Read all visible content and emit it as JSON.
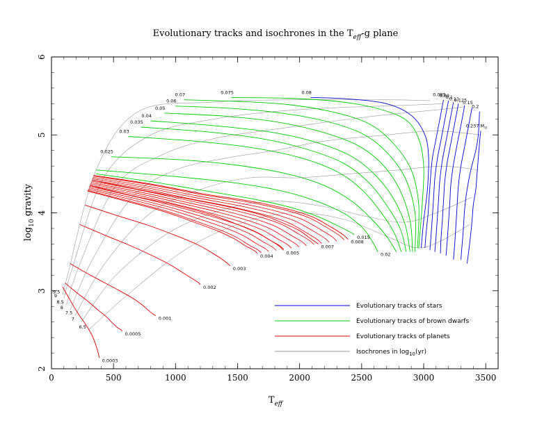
{
  "chart_data": {
    "type": "line",
    "title": "Evolutionary tracks and isochrones in the T",
    "title_sub": "eff",
    "title_tail": "-g plane",
    "xlabel": "T",
    "xlabel_sub": "eff",
    "ylabel": "log",
    "ylabel_sub": "10",
    "ylabel_tail": " gravity",
    "xlim": [
      0,
      3600
    ],
    "ylim": [
      2,
      6
    ],
    "xticks": [
      "0",
      "500",
      "1000",
      "1500",
      "2000",
      "2500",
      "3000",
      "3500"
    ],
    "yticks": [
      "2",
      "3",
      "4",
      "5",
      "6"
    ],
    "colors": {
      "stars": "#0000cc",
      "brown_dwarfs": "#00cc00",
      "planets": "#dd0000",
      "isochrones": "#999999"
    },
    "legend": [
      {
        "label": "Evolutionary tracks of stars",
        "color": "#0000cc"
      },
      {
        "label": "Evolutionary tracks of brown dwarfs",
        "color": "#00cc00"
      },
      {
        "label": "Evolutionary tracks of planets",
        "color": "#dd0000"
      },
      {
        "label": "Isochrones in log",
        "sub": "10",
        "tail": "(yr)",
        "color": "#999999"
      }
    ],
    "stars": [
      {
        "label": "0.237 M",
        "sub": "⊙",
        "x": [
          3460,
          3450,
          3440,
          3430,
          3420,
          3400,
          3390,
          3370,
          3350
        ],
        "y": [
          5.05,
          4.9,
          4.7,
          4.5,
          4.3,
          4.1,
          3.9,
          3.6,
          3.35
        ]
      },
      {
        "label": "0.2",
        "x": [
          3450,
          3440,
          3420,
          3380,
          3350,
          3330,
          3320,
          3310,
          3300
        ],
        "y": [
          5.3,
          5.0,
          4.8,
          4.55,
          4.3,
          4.05,
          3.8,
          3.6,
          3.4
        ]
      },
      {
        "label": "0.15",
        "x": [
          3390,
          3360,
          3330,
          3300,
          3280,
          3270,
          3260,
          3250,
          3240
        ],
        "y": [
          5.35,
          5.1,
          4.85,
          4.6,
          4.35,
          4.1,
          3.85,
          3.6,
          3.4
        ]
      },
      {
        "label": "0.125",
        "x": [
          3330,
          3300,
          3270,
          3240,
          3220,
          3210,
          3200,
          3190,
          3180
        ],
        "y": [
          5.38,
          5.12,
          4.88,
          4.62,
          4.38,
          4.12,
          3.88,
          3.65,
          3.45
        ]
      },
      {
        "label": "0.11",
        "x": [
          3280,
          3250,
          3220,
          3190,
          3170,
          3160,
          3150,
          3140,
          3135
        ],
        "y": [
          5.4,
          5.15,
          4.9,
          4.65,
          4.4,
          4.15,
          3.9,
          3.68,
          3.48
        ]
      },
      {
        "label": "0.1",
        "x": [
          3240,
          3210,
          3180,
          3150,
          3130,
          3120,
          3110,
          3100,
          3090
        ],
        "y": [
          5.42,
          5.17,
          4.92,
          4.67,
          4.42,
          4.17,
          3.93,
          3.7,
          3.5
        ]
      },
      {
        "label": "0.09",
        "x": [
          3200,
          3170,
          3140,
          3110,
          3090,
          3080,
          3070,
          3060,
          3050
        ],
        "y": [
          5.44,
          5.19,
          4.94,
          4.69,
          4.44,
          4.2,
          3.95,
          3.72,
          3.52
        ]
      },
      {
        "label": "0.085",
        "x": [
          3160,
          3130,
          3100,
          3070,
          3055,
          3045,
          3035,
          3020,
          3010
        ],
        "y": [
          5.45,
          5.2,
          4.95,
          4.7,
          4.45,
          4.22,
          3.98,
          3.75,
          3.55
        ]
      },
      {
        "label": "0.08",
        "x": [
          2090,
          2400,
          2700,
          2900,
          3010,
          3040,
          3030,
          3000,
          2980
        ],
        "y": [
          5.48,
          5.46,
          5.4,
          5.25,
          5.0,
          4.7,
          4.3,
          3.9,
          3.55
        ]
      }
    ],
    "brown_dwarfs": [
      {
        "label": "0.075",
        "x": [
          1450,
          1900,
          2300,
          2600,
          2850,
          2960,
          3000,
          2990,
          2960
        ],
        "y": [
          5.48,
          5.47,
          5.43,
          5.35,
          5.2,
          4.95,
          4.6,
          4.15,
          3.55
        ]
      },
      {
        "label": "0.07",
        "x": [
          1070,
          1500,
          1900,
          2250,
          2550,
          2750,
          2900,
          2960,
          2950
        ],
        "y": [
          5.45,
          5.43,
          5.39,
          5.3,
          5.15,
          4.9,
          4.55,
          4.1,
          3.55
        ]
      },
      {
        "label": "0.06",
        "x": [
          1000,
          1450,
          1850,
          2200,
          2500,
          2700,
          2850,
          2930,
          2930
        ],
        "y": [
          5.37,
          5.34,
          5.28,
          5.18,
          5.02,
          4.78,
          4.45,
          4.0,
          3.5
        ]
      },
      {
        "label": "0.05",
        "x": [
          910,
          1400,
          1800,
          2150,
          2450,
          2650,
          2800,
          2890,
          2910
        ],
        "y": [
          5.28,
          5.24,
          5.17,
          5.05,
          4.88,
          4.65,
          4.32,
          3.9,
          3.5
        ]
      },
      {
        "label": "0.04",
        "x": [
          800,
          1300,
          1750,
          2100,
          2400,
          2600,
          2750,
          2850,
          2890
        ],
        "y": [
          5.18,
          5.12,
          5.04,
          4.92,
          4.74,
          4.5,
          4.2,
          3.85,
          3.5
        ]
      },
      {
        "label": "0.035",
        "x": [
          720,
          1250,
          1700,
          2050,
          2350,
          2550,
          2700,
          2810,
          2860
        ],
        "y": [
          5.1,
          5.04,
          4.95,
          4.82,
          4.64,
          4.4,
          4.1,
          3.8,
          3.5
        ]
      },
      {
        "label": "0.03",
        "x": [
          620,
          1150,
          1600,
          2000,
          2300,
          2500,
          2650,
          2760,
          2820
        ],
        "y": [
          4.98,
          4.92,
          4.84,
          4.71,
          4.53,
          4.3,
          4.02,
          3.75,
          3.5
        ]
      },
      {
        "label": "0.025",
        "x": [
          480,
          1050,
          1500,
          1900,
          2200,
          2420,
          2580,
          2700,
          2780
        ],
        "y": [
          4.72,
          4.68,
          4.61,
          4.5,
          4.35,
          4.15,
          3.92,
          3.7,
          3.5
        ]
      },
      {
        "label": "0.02",
        "x": [
          360,
          900,
          1400,
          1800,
          2100,
          2350,
          2500,
          2580,
          2630
        ],
        "y": [
          4.55,
          4.48,
          4.4,
          4.3,
          4.17,
          4.0,
          3.82,
          3.65,
          3.5
        ]
      },
      {
        "label": "0.015",
        "x": [
          360,
          800,
          1250,
          1650,
          1950,
          2150,
          2300,
          2400,
          2440
        ],
        "y": [
          4.5,
          4.4,
          4.28,
          4.17,
          4.06,
          3.95,
          3.84,
          3.76,
          3.72
        ]
      }
    ],
    "planets": [
      {
        "label": "0.008",
        "x": [
          340,
          800,
          1200,
          1600,
          1900,
          2100,
          2250,
          2350,
          2390
        ],
        "y": [
          4.48,
          4.37,
          4.25,
          4.15,
          4.05,
          3.95,
          3.82,
          3.72,
          3.66
        ]
      },
      {
        "label": "0.007",
        "x": [
          330,
          700,
          1100,
          1450,
          1700,
          1850,
          1990,
          2080,
          2150
        ],
        "y": [
          4.42,
          4.3,
          4.18,
          4.07,
          3.97,
          3.88,
          3.78,
          3.68,
          3.6
        ]
      },
      {
        "label": "0.005",
        "x": [
          310,
          650,
          1000,
          1300,
          1500,
          1650,
          1750,
          1830,
          1870
        ],
        "y": [
          4.35,
          4.22,
          4.1,
          3.97,
          3.85,
          3.75,
          3.66,
          3.58,
          3.52
        ]
      },
      {
        "label": "0.004",
        "x": [
          290,
          600,
          900,
          1150,
          1350,
          1470,
          1560,
          1630,
          1660
        ],
        "y": [
          4.28,
          4.15,
          4.02,
          3.88,
          3.76,
          3.67,
          3.58,
          3.52,
          3.48
        ]
      },
      {
        "label": "0.003",
        "x": [
          270,
          520,
          780,
          1000,
          1180,
          1290,
          1370,
          1420,
          1440
        ],
        "y": [
          4.1,
          3.97,
          3.84,
          3.71,
          3.59,
          3.49,
          3.41,
          3.35,
          3.32
        ]
      },
      {
        "label": "0.002",
        "x": [
          230,
          420,
          620,
          800,
          950,
          1050,
          1130,
          1180,
          1200
        ],
        "y": [
          3.85,
          3.72,
          3.59,
          3.46,
          3.34,
          3.24,
          3.16,
          3.11,
          3.08
        ]
      },
      {
        "label": "0.001",
        "x": [
          150,
          280,
          420,
          550,
          660,
          730,
          780,
          820,
          840
        ],
        "y": [
          3.35,
          3.23,
          3.11,
          3.0,
          2.9,
          2.82,
          2.75,
          2.7,
          2.68
        ]
      },
      {
        "label": "0.0005",
        "x": [
          110,
          200,
          290,
          370,
          440,
          490,
          530,
          560,
          570
        ],
        "y": [
          3.1,
          2.98,
          2.87,
          2.76,
          2.67,
          2.59,
          2.53,
          2.5,
          2.48
        ]
      },
      {
        "label": "0.0003",
        "x": [
          90,
          150,
          210,
          270,
          320,
          350,
          370,
          380,
          385
        ],
        "y": [
          3.05,
          2.88,
          2.72,
          2.58,
          2.45,
          2.34,
          2.24,
          2.18,
          2.14
        ]
      }
    ],
    "extra_planet_tracks": 12,
    "isochrones": [
      {
        "label": "9.5",
        "x": [
          90,
          130,
          360,
          700,
          1300,
          1900,
          2700,
          3050
        ],
        "y": [
          2.95,
          3.2,
          4.55,
          5.3,
          5.42,
          5.45,
          5.45,
          5.44
        ]
      },
      {
        "label": "9",
        "x": [
          100,
          170,
          420,
          800,
          1300,
          1800,
          2300,
          2850,
          3150
        ],
        "y": [
          2.9,
          3.3,
          4.45,
          5.0,
          5.2,
          5.3,
          5.35,
          5.38,
          5.4
        ]
      },
      {
        "label": "8.5",
        "x": [
          120,
          230,
          520,
          900,
          1300,
          1700,
          2150,
          2650,
          3100,
          3330
        ],
        "y": [
          2.82,
          3.35,
          4.35,
          4.75,
          4.95,
          5.05,
          5.15,
          5.25,
          5.32,
          5.36
        ]
      },
      {
        "label": "8",
        "x": [
          150,
          330,
          650,
          1000,
          1400,
          1800,
          2200,
          2700,
          3100,
          3460
        ],
        "y": [
          2.75,
          3.4,
          4.2,
          4.55,
          4.7,
          4.8,
          4.92,
          5.0,
          5.05,
          5.0
        ]
      },
      {
        "label": "7.5",
        "x": [
          190,
          430,
          800,
          1200,
          1600,
          2000,
          2400,
          2800,
          3150,
          3440
        ],
        "y": [
          2.68,
          3.35,
          4.0,
          4.3,
          4.45,
          4.45,
          4.5,
          4.55,
          4.6,
          4.55
        ]
      },
      {
        "label": "7",
        "x": [
          240,
          520,
          950,
          1400,
          1800,
          2200,
          2550,
          2850,
          3100,
          3390
        ],
        "y": [
          2.6,
          3.2,
          3.75,
          4.05,
          4.15,
          4.08,
          3.95,
          3.88,
          4.0,
          4.2
        ]
      },
      {
        "label": "6.5",
        "x": [
          300,
          650,
          1100,
          1550,
          1950,
          2350,
          2700,
          2950,
          3150,
          3370
        ],
        "y": [
          2.5,
          3.0,
          3.55,
          3.88,
          4.0,
          3.92,
          3.7,
          3.55,
          3.65,
          3.85
        ]
      }
    ]
  }
}
